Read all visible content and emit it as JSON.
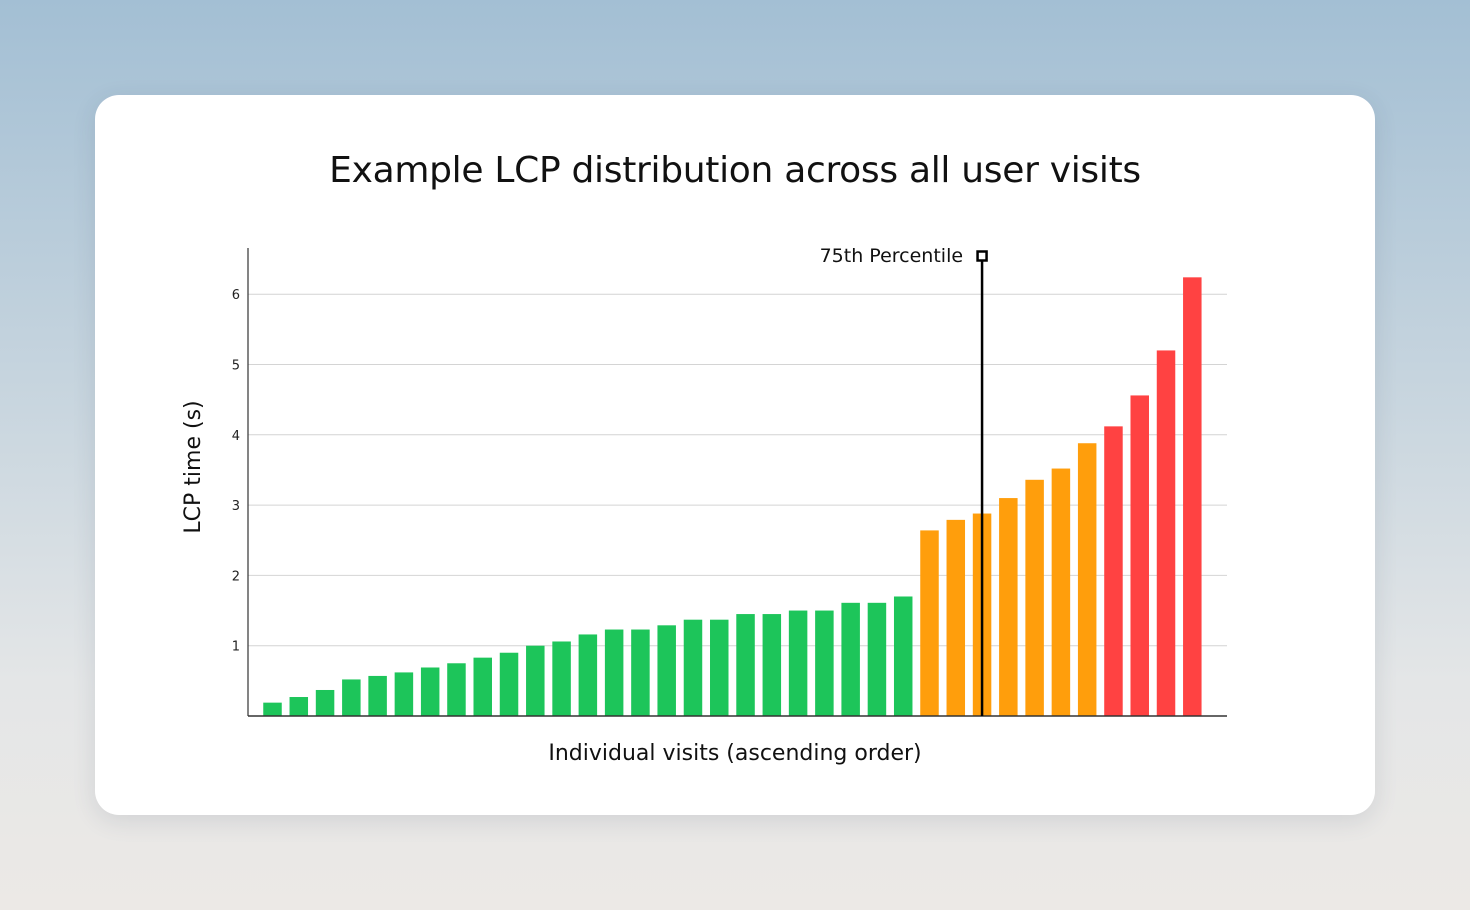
{
  "chart_data": {
    "type": "bar",
    "title": "Example LCP distribution across all user visits",
    "xlabel": "Individual visits (ascending order)",
    "ylabel": "LCP time (s)",
    "ylim": [
      0,
      6.6
    ],
    "yticks": [
      "1",
      "2",
      "3",
      "4",
      "5",
      "6"
    ],
    "grid": true,
    "values": [
      0.19,
      0.27,
      0.37,
      0.52,
      0.57,
      0.62,
      0.69,
      0.75,
      0.83,
      0.9,
      1.0,
      1.06,
      1.16,
      1.23,
      1.23,
      1.29,
      1.37,
      1.37,
      1.45,
      1.45,
      1.5,
      1.5,
      1.61,
      1.61,
      1.7,
      2.64,
      2.79,
      2.88,
      3.1,
      3.36,
      3.52,
      3.88,
      4.12,
      4.56,
      5.2,
      6.24
    ],
    "categories_by_bar": [
      "good",
      "good",
      "good",
      "good",
      "good",
      "good",
      "good",
      "good",
      "good",
      "good",
      "good",
      "good",
      "good",
      "good",
      "good",
      "good",
      "good",
      "good",
      "good",
      "good",
      "good",
      "good",
      "good",
      "good",
      "good",
      "needs-improvement",
      "needs-improvement",
      "needs-improvement",
      "needs-improvement",
      "needs-improvement",
      "needs-improvement",
      "needs-improvement",
      "poor",
      "poor",
      "poor",
      "poor"
    ],
    "colors": {
      "good": "#1dc55a",
      "needs-improvement": "#ff9e0c",
      "poor": "#ff4242"
    },
    "annotation": {
      "label": "75th Percentile",
      "bar_index": 27
    }
  }
}
